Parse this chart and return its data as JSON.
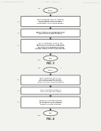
{
  "bg_color": "#f2f2ee",
  "header_text": "United States Patent Application",
  "header_date": "Jan. 7, 2010",
  "header_sheet": "Sheet 2 of 3",
  "header_num": "US 2010/XXXXXXXX A1",
  "fig3_label": "FIG. 3",
  "fig4_label": "FIG. 4",
  "fig3_start_label": "310",
  "fig3_page_label": "3",
  "fig3_end_label": "320",
  "fig3_b1_label": "312",
  "fig3_b1_text": "PROVIDE MEMORY CELL OF A MEMORY\nARRAY FORMED IN FIRST SUBSTRATE\nFORMED FROM HAVING MULTIPLE\nCOMPONENTS AND STORING MEMORY",
  "fig3_b2_label": "314",
  "fig3_b2_text": "WRITE A MEMORY STATE INTO THE CORE\nMEMORY CIRCUIT OF THE MEMORY CELL\nIN RESPONSE TO MEMORY WRITE",
  "fig3_b3_label": "316",
  "fig3_b3_text": "READ THE MEMORY STATE OF THE\nMEMORY CELL THROUGH A CORE STATE\nREAD CIRCUIT TO AN OUTPUT WHEREIN\nREAD OF THE READ BUFFER BUFFERS\nCORE STORED CURRENT SUPPLY POWER\nCURRENT IN MEMORY OF THE MEMORY CELL",
  "fig4_start_label": "410",
  "fig4_page_label": "4",
  "fig4_end_label": "420",
  "fig4_b1_label": "412",
  "fig4_b1_text": "PROVIDE MEMORY CELL OF AN\nSRAM ARRAY FORMED IN CORE\nSTORAGE ELEMENT AND IN READ\nBUFFER ON FIRST COMMON CURRENT",
  "fig4_b2_label": "414",
  "fig4_b2_text": "WRITE COMMON CURRENT TO\nTHE CORE STORAGE ELEMENT",
  "fig4_b3_label": "416",
  "fig4_b3_text": "BUFFER THE COMMON CURRENT\nOF THE READ BUFFER THROUGH\nREAD OUT OF THE READ BUFFER\nPOWER TO THE READ BUFFER",
  "box_color": "#ffffff",
  "box_edge": "#555555",
  "arrow_color": "#333333",
  "text_color": "#111111",
  "label_color": "#555555",
  "header_color": "#aaaaaa",
  "figname_color": "#333333"
}
